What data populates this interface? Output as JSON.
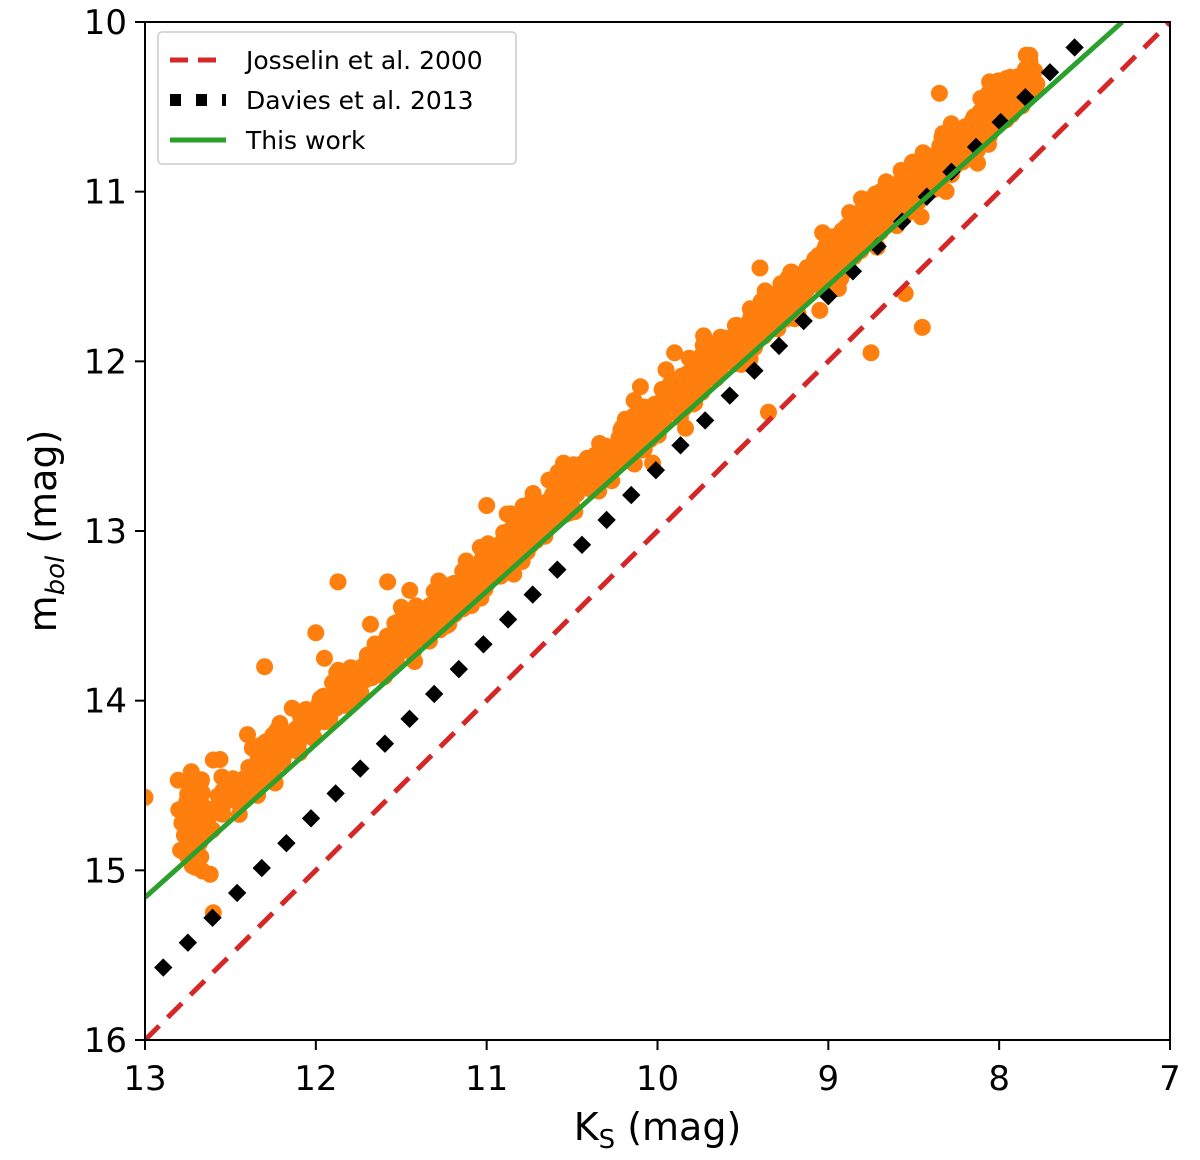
{
  "chart_data": {
    "type": "scatter",
    "xlabel": {
      "main": "K",
      "sub": "S",
      "unit": " (mag)"
    },
    "ylabel": {
      "main": "m",
      "sub": "bol",
      "unit": " (mag)"
    },
    "xlim": [
      13,
      7
    ],
    "ylim": [
      16,
      10
    ],
    "x_inverted": true,
    "y_inverted": true,
    "xticks": [
      13,
      12,
      11,
      10,
      9,
      8,
      7
    ],
    "yticks": [
      10,
      11,
      12,
      13,
      14,
      15,
      16
    ],
    "legend_position": "top-left",
    "grid": false,
    "series": [
      {
        "name": "Josselin et al. 2000",
        "kind": "line",
        "style": "dashed",
        "color": "#d62728",
        "x": [
          13.0,
          7.0
        ],
        "y": [
          16.0,
          10.0
        ]
      },
      {
        "name": "Davies et al. 2013",
        "kind": "line",
        "style": "dotted",
        "color": "#000000",
        "x": [
          12.92,
          7.45
        ],
        "y": [
          15.6,
          10.04
        ]
      },
      {
        "name": "This work",
        "kind": "line",
        "style": "solid",
        "color": "#2ca02c",
        "x": [
          13.0,
          7.28
        ],
        "y": [
          15.16,
          10.0
        ]
      },
      {
        "kind": "scatter",
        "color": "#ff7f0e",
        "trend": {
          "x_start": 12.75,
          "x_end": 7.8,
          "y_start": 14.78,
          "y_end": 10.33,
          "spread": 0.07,
          "count": 1400
        },
        "x": [
          12.72,
          12.75,
          12.6,
          12.55,
          12.4,
          12.3,
          12.0,
          11.87,
          11.68,
          11.58,
          11.45,
          11.0,
          10.88,
          10.7,
          10.55,
          10.3,
          10.1,
          9.95,
          9.9,
          9.73,
          9.4,
          9.35,
          9.2,
          9.05,
          8.75,
          8.6,
          8.5,
          8.45,
          8.28,
          8.28,
          8.2,
          8.35,
          8.55,
          13.0,
          12.6,
          12.2,
          11.95,
          11.5
        ],
        "y": [
          14.45,
          14.55,
          14.35,
          14.45,
          14.2,
          13.8,
          13.6,
          13.3,
          13.55,
          13.3,
          13.35,
          12.85,
          12.9,
          13.0,
          12.6,
          12.5,
          12.15,
          12.05,
          11.95,
          11.85,
          11.45,
          12.3,
          11.55,
          11.7,
          11.95,
          11.2,
          11.05,
          11.8,
          10.9,
          10.6,
          10.75,
          10.42,
          11.6,
          14.57,
          15.25,
          14.35,
          13.75,
          13.45
        ]
      }
    ]
  }
}
